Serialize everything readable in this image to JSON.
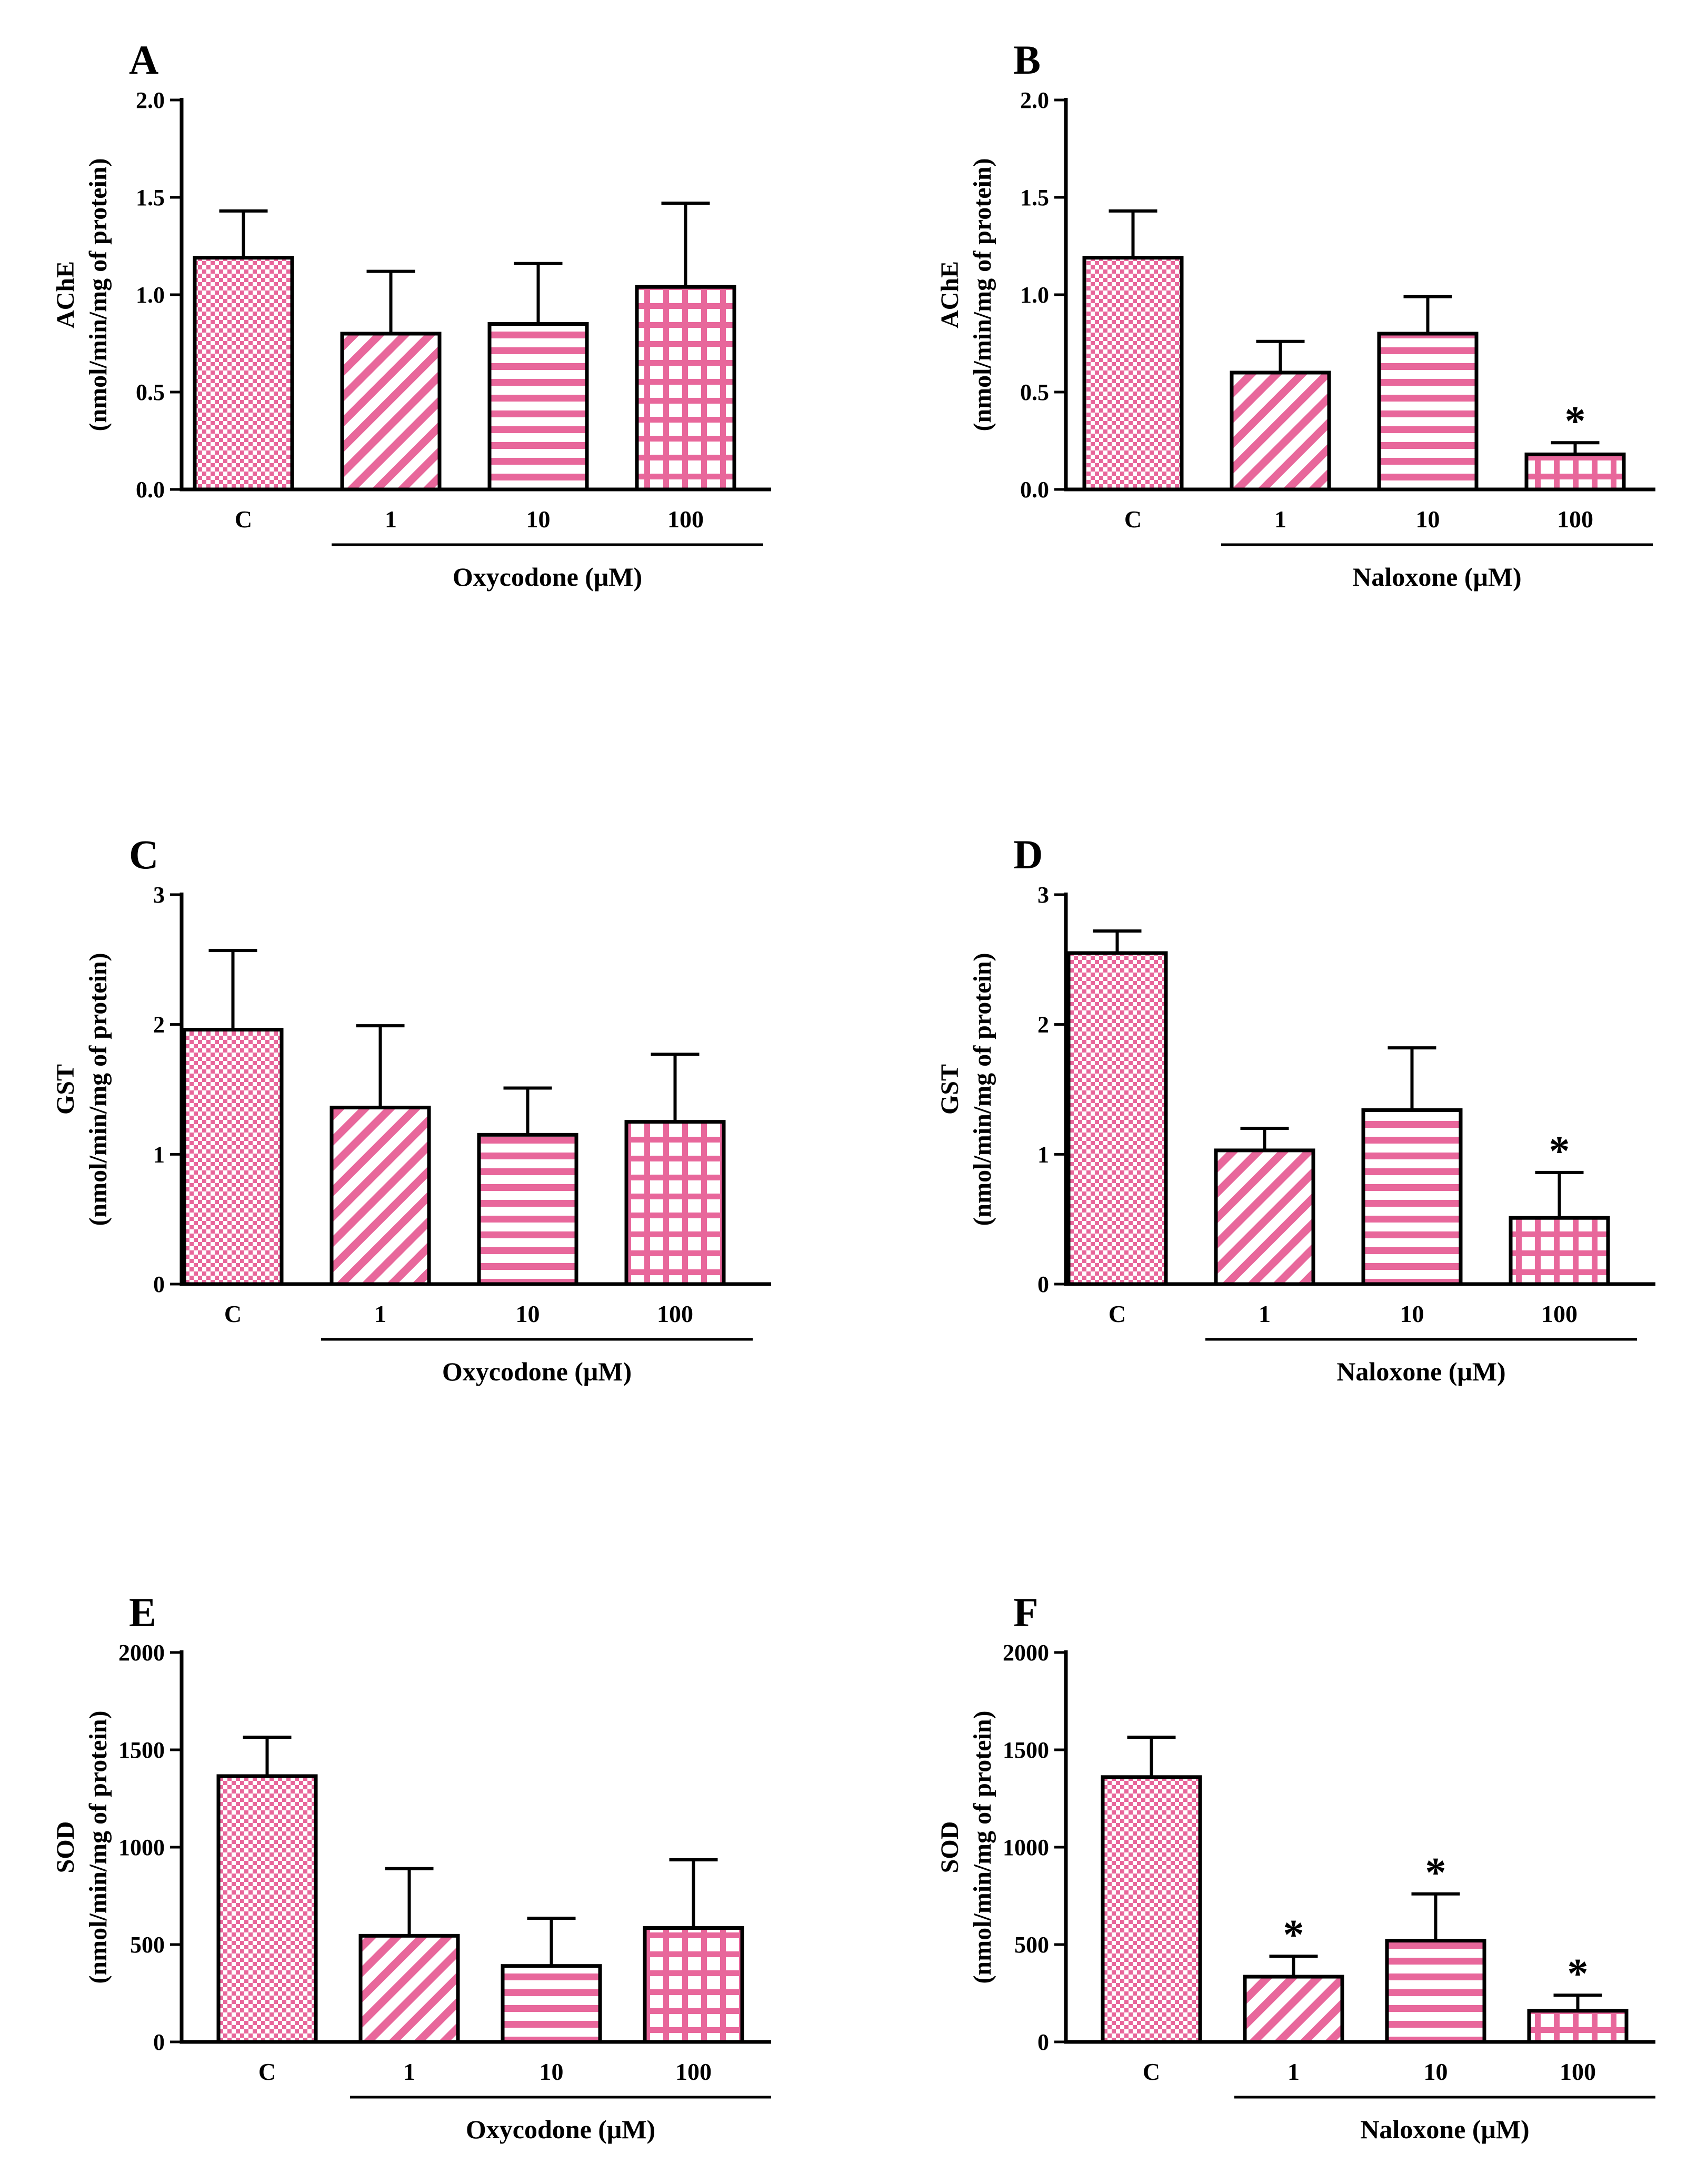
{
  "colors": {
    "pink": "#e8679b",
    "pink_light": "#f7c6da",
    "axis": "#000000",
    "background": "#ffffff"
  },
  "chart_data": [
    {
      "type": "bar",
      "panel": "A",
      "categories": [
        "C",
        "1",
        "10",
        "100"
      ],
      "group_label": "Oxycodone (μM)",
      "ylabel_line1": "AChE",
      "ylabel_line2": "(nmol/min/mg of protein)",
      "ylim": [
        0,
        2.0
      ],
      "yticks": [
        0,
        0.5,
        1.0,
        1.5,
        2.0
      ],
      "ytick_labels": [
        "0.0",
        "0.5",
        "1.0",
        "1.5",
        "2.0"
      ],
      "values": [
        1.19,
        0.8,
        0.85,
        1.04
      ],
      "errors": [
        0.24,
        0.32,
        0.31,
        0.43
      ],
      "patterns": [
        "checker",
        "diagonal",
        "horizontal",
        "grid"
      ],
      "significant": [
        false,
        false,
        false,
        false
      ],
      "significance_marker": "*"
    },
    {
      "type": "bar",
      "panel": "B",
      "categories": [
        "C",
        "1",
        "10",
        "100"
      ],
      "group_label": "Naloxone (μM)",
      "ylabel_line1": "AChE",
      "ylabel_line2": "(nmol/min/mg of protein)",
      "ylim": [
        0,
        2.0
      ],
      "yticks": [
        0,
        0.5,
        1.0,
        1.5,
        2.0
      ],
      "ytick_labels": [
        "0.0",
        "0.5",
        "1.0",
        "1.5",
        "2.0"
      ],
      "values": [
        1.19,
        0.6,
        0.8,
        0.18
      ],
      "errors": [
        0.24,
        0.16,
        0.19,
        0.06
      ],
      "patterns": [
        "checker",
        "diagonal",
        "horizontal",
        "grid"
      ],
      "significant": [
        false,
        false,
        false,
        true
      ],
      "significance_marker": "*"
    },
    {
      "type": "bar",
      "panel": "C",
      "categories": [
        "C",
        "1",
        "10",
        "100"
      ],
      "group_label": "Oxycodone (μM)",
      "ylabel_line1": "GST",
      "ylabel_line2": "(nmol/min/mg of protein)",
      "ylim": [
        0,
        3
      ],
      "yticks": [
        0,
        1,
        2,
        3
      ],
      "ytick_labels": [
        "0",
        "1",
        "2",
        "3"
      ],
      "values": [
        1.96,
        1.36,
        1.15,
        1.25
      ],
      "errors": [
        0.61,
        0.63,
        0.36,
        0.52
      ],
      "patterns": [
        "checker",
        "diagonal",
        "horizontal",
        "grid"
      ],
      "significant": [
        false,
        false,
        false,
        false
      ],
      "significance_marker": "*"
    },
    {
      "type": "bar",
      "panel": "D",
      "categories": [
        "C",
        "1",
        "10",
        "100"
      ],
      "group_label": "Naloxone (μM)",
      "ylabel_line1": "GST",
      "ylabel_line2": "(nmol/min/mg of protein)",
      "ylim": [
        0,
        3
      ],
      "yticks": [
        0,
        1,
        2,
        3
      ],
      "ytick_labels": [
        "0",
        "1",
        "2",
        "3"
      ],
      "values": [
        2.55,
        1.03,
        1.34,
        0.51
      ],
      "errors": [
        0.17,
        0.17,
        0.48,
        0.35
      ],
      "patterns": [
        "checker",
        "diagonal",
        "horizontal",
        "grid"
      ],
      "significant": [
        false,
        false,
        false,
        true
      ],
      "significance_marker": "*"
    },
    {
      "type": "bar",
      "panel": "E",
      "categories": [
        "C",
        "1",
        "10",
        "100"
      ],
      "group_label": "Oxycodone (μM)",
      "ylabel_line1": "SOD",
      "ylabel_line2": "(nmol/min/mg of protein)",
      "ylim": [
        0,
        2000
      ],
      "yticks": [
        0,
        500,
        1000,
        1500,
        2000
      ],
      "ytick_labels": [
        "0",
        "500",
        "1000",
        "1500",
        "2000"
      ],
      "values": [
        1365,
        545,
        390,
        585
      ],
      "errors": [
        200,
        345,
        245,
        350
      ],
      "patterns": [
        "checker",
        "diagonal",
        "horizontal",
        "grid"
      ],
      "significant": [
        false,
        false,
        false,
        false
      ],
      "significance_marker": "*"
    },
    {
      "type": "bar",
      "panel": "F",
      "categories": [
        "C",
        "1",
        "10",
        "100"
      ],
      "group_label": "Naloxone (μM)",
      "ylabel_line1": "SOD",
      "ylabel_line2": "(nmol/min/mg of protein)",
      "ylim": [
        0,
        2000
      ],
      "yticks": [
        0,
        500,
        1000,
        1500,
        2000
      ],
      "ytick_labels": [
        "0",
        "500",
        "1000",
        "1500",
        "2000"
      ],
      "values": [
        1360,
        335,
        520,
        160
      ],
      "errors": [
        205,
        105,
        240,
        80
      ],
      "patterns": [
        "checker",
        "diagonal",
        "horizontal",
        "grid"
      ],
      "significant": [
        false,
        true,
        true,
        true
      ],
      "significance_marker": "*"
    }
  ]
}
